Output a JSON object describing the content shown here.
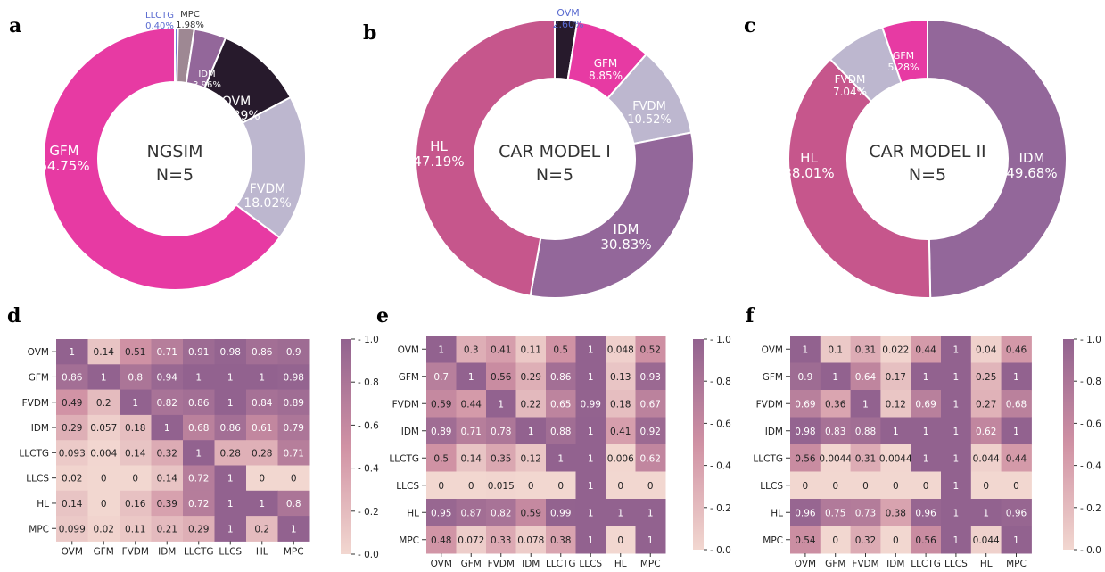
{
  "panel_letters": [
    "a",
    "b",
    "c",
    "d",
    "e",
    "f"
  ],
  "colors": {
    "GFM": "#e73aa3",
    "FVDM": "#bdb7cf",
    "OVM": "#271a2c",
    "IDM": "#93679a",
    "MPC": "#9e8893",
    "LLCTG": "#6d7ad6",
    "HL": "#c6568c",
    "LLCS": "#efd5d0",
    "cmap_low": "#f2d7d0",
    "cmap_mid": "#d092a4",
    "cmap_high": "#92628f"
  },
  "chart_data": [
    {
      "type": "pie",
      "panel": "a",
      "center_title": "NGSIM",
      "center_subtitle": "N=5",
      "slices": [
        {
          "label": "LLCTG",
          "value": 0.4,
          "pct": "0.40%"
        },
        {
          "label": "MPC",
          "value": 1.98,
          "pct": "1.98%"
        },
        {
          "label": "IDM",
          "value": 3.96,
          "pct": "3.96%"
        },
        {
          "label": "OVM",
          "value": 10.89,
          "pct": "10.89%"
        },
        {
          "label": "FVDM",
          "value": 18.02,
          "pct": "18.02%"
        },
        {
          "label": "GFM",
          "value": 64.75,
          "pct": "64.75%"
        }
      ]
    },
    {
      "type": "pie",
      "panel": "b",
      "center_title": "CAR MODEL I",
      "center_subtitle": "N=5",
      "slices": [
        {
          "label": "OVM",
          "value": 2.6,
          "pct": "2.60%"
        },
        {
          "label": "GFM",
          "value": 8.85,
          "pct": "8.85%"
        },
        {
          "label": "FVDM",
          "value": 10.52,
          "pct": "10.52%"
        },
        {
          "label": "IDM",
          "value": 30.83,
          "pct": "30.83%"
        },
        {
          "label": "HL",
          "value": 47.19,
          "pct": "47.19%"
        }
      ]
    },
    {
      "type": "pie",
      "panel": "c",
      "center_title": "CAR MODEL II",
      "center_subtitle": "N=5",
      "slices": [
        {
          "label": "IDM",
          "value": 49.68,
          "pct": "49.68%"
        },
        {
          "label": "HL",
          "value": 38.01,
          "pct": "38.01%"
        },
        {
          "label": "FVDM",
          "value": 7.04,
          "pct": "7.04%"
        },
        {
          "label": "GFM",
          "value": 5.28,
          "pct": "5.28%"
        }
      ]
    },
    {
      "type": "heatmap",
      "panel": "d",
      "rows": [
        "OVM",
        "GFM",
        "FVDM",
        "IDM",
        "LLCTG",
        "LLCS",
        "HL",
        "MPC"
      ],
      "cols": [
        "OVM",
        "GFM",
        "FVDM",
        "IDM",
        "LLCTG",
        "LLCS",
        "HL",
        "MPC"
      ],
      "labels": [
        [
          "1",
          "0.14",
          "0.51",
          "0.71",
          "0.91",
          "0.98",
          "0.86",
          "0.9"
        ],
        [
          "0.86",
          "1",
          "0.8",
          "0.94",
          "1",
          "1",
          "1",
          "0.98"
        ],
        [
          "0.49",
          "0.2",
          "1",
          "0.82",
          "0.86",
          "1",
          "0.84",
          "0.89"
        ],
        [
          "0.29",
          "0.057",
          "0.18",
          "1",
          "0.68",
          "0.86",
          "0.61",
          "0.79"
        ],
        [
          "0.093",
          "0.004",
          "0.14",
          "0.32",
          "1",
          "0.28",
          "0.28",
          "0.71"
        ],
        [
          "0.02",
          "0",
          "0",
          "0.14",
          "0.72",
          "1",
          "0",
          "0"
        ],
        [
          "0.14",
          "0",
          "0.16",
          "0.39",
          "0.72",
          "1",
          "1",
          "0.8"
        ],
        [
          "0.099",
          "0.02",
          "0.11",
          "0.21",
          "0.29",
          "1",
          "0.2",
          "1"
        ]
      ],
      "colorbar_ticks": [
        "0.0",
        "0.2",
        "0.4",
        "0.6",
        "0.8",
        "1.0"
      ],
      "vmin": 0,
      "vmax": 1
    },
    {
      "type": "heatmap",
      "panel": "e",
      "rows": [
        "OVM",
        "GFM",
        "FVDM",
        "IDM",
        "LLCTG",
        "LLCS",
        "HL",
        "MPC"
      ],
      "cols": [
        "OVM",
        "GFM",
        "FVDM",
        "IDM",
        "LLCTG",
        "LLCS",
        "HL",
        "MPC"
      ],
      "labels": [
        [
          "1",
          "0.3",
          "0.41",
          "0.11",
          "0.5",
          "1",
          "0.048",
          "0.52"
        ],
        [
          "0.7",
          "1",
          "0.56",
          "0.29",
          "0.86",
          "1",
          "0.13",
          "0.93"
        ],
        [
          "0.59",
          "0.44",
          "1",
          "0.22",
          "0.65",
          "0.99",
          "0.18",
          "0.67"
        ],
        [
          "0.89",
          "0.71",
          "0.78",
          "1",
          "0.88",
          "1",
          "0.41",
          "0.92"
        ],
        [
          "0.5",
          "0.14",
          "0.35",
          "0.12",
          "1",
          "1",
          "0.006",
          "0.62"
        ],
        [
          "0",
          "0",
          "0.015",
          "0",
          "0",
          "1",
          "0",
          "0"
        ],
        [
          "0.95",
          "0.87",
          "0.82",
          "0.59",
          "0.99",
          "1",
          "1",
          "1"
        ],
        [
          "0.48",
          "0.072",
          "0.33",
          "0.078",
          "0.38",
          "1",
          "0",
          "1"
        ]
      ],
      "colorbar_ticks": [
        "0.0",
        "0.2",
        "0.4",
        "0.6",
        "0.8",
        "1.0"
      ],
      "vmin": 0,
      "vmax": 1
    },
    {
      "type": "heatmap",
      "panel": "f",
      "rows": [
        "OVM",
        "GFM",
        "FVDM",
        "IDM",
        "LLCTG",
        "LLCS",
        "HL",
        "MPC"
      ],
      "cols": [
        "OVM",
        "GFM",
        "FVDM",
        "IDM",
        "LLCTG",
        "LLCS",
        "HL",
        "MPC"
      ],
      "labels": [
        [
          "1",
          "0.1",
          "0.31",
          "0.022",
          "0.44",
          "1",
          "0.04",
          "0.46"
        ],
        [
          "0.9",
          "1",
          "0.64",
          "0.17",
          "1",
          "1",
          "0.25",
          "1"
        ],
        [
          "0.69",
          "0.36",
          "1",
          "0.12",
          "0.69",
          "1",
          "0.27",
          "0.68"
        ],
        [
          "0.98",
          "0.83",
          "0.88",
          "1",
          "1",
          "1",
          "0.62",
          "1"
        ],
        [
          "0.56",
          "0.0044",
          "0.31",
          "0.0044",
          "1",
          "1",
          "0.044",
          "0.44"
        ],
        [
          "0",
          "0",
          "0",
          "0",
          "0",
          "1",
          "0",
          "0"
        ],
        [
          "0.96",
          "0.75",
          "0.73",
          "0.38",
          "0.96",
          "1",
          "1",
          "0.96"
        ],
        [
          "0.54",
          "0",
          "0.32",
          "0",
          "0.56",
          "1",
          "0.044",
          "1"
        ]
      ],
      "colorbar_ticks": [
        "0.0",
        "0.2",
        "0.4",
        "0.6",
        "0.8",
        "1.0"
      ],
      "vmin": 0,
      "vmax": 1
    }
  ]
}
